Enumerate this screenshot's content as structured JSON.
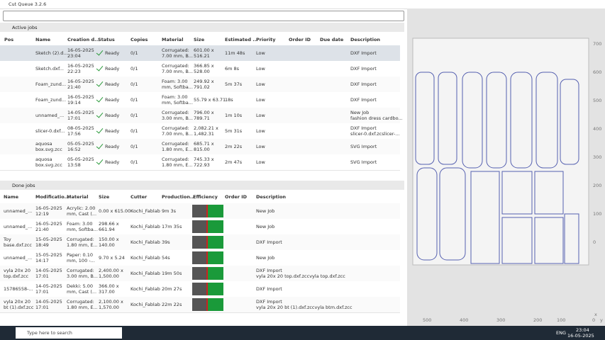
{
  "window": {
    "title": "Cut Queue 3.2.6"
  },
  "active": {
    "title": "Active jobs",
    "columns": [
      "Pos",
      "Name",
      "Creation d...",
      "Status",
      "Copies",
      "Material",
      "Size",
      "Estimated ...",
      "Priority",
      "Order ID",
      "Due date",
      "Description"
    ],
    "rows": [
      [
        "",
        "Sketch (2).d...",
        "16-05-2025\n23:04",
        "Ready",
        "0/1",
        "Corrugated:\n7.00 mm, B...",
        "601.00 x\n516.21",
        "11m 48s",
        "Low",
        "",
        "",
        "DXF Import"
      ],
      [
        "",
        "Sketch.dxf...",
        "16-05-2025\n22:23",
        "Ready",
        "0/1",
        "Corrugated:\n7.00 mm, B...",
        "366.85 x\n528.00",
        "6m 8s",
        "Low",
        "",
        "",
        "DXF Import"
      ],
      [
        "",
        "Foam_zund...",
        "16-05-2025\n21:40",
        "Ready",
        "0/1",
        "Foam: 3.00\nmm, Softba...",
        "249.92 x\n791.02",
        "5m 37s",
        "Low",
        "",
        "",
        "DXF Import"
      ],
      [
        "",
        "Foam_zund...",
        "16-05-2025\n19:14",
        "Ready",
        "0/1",
        "Foam: 3.00\nmm, Softba...",
        "55.79 x 63.71",
        "18s",
        "Low",
        "",
        "",
        "DXF Import"
      ],
      [
        "",
        "unnamed_...",
        "14-05-2025\n17:01",
        "Ready",
        "0/1",
        "Corrugated:\n3.00 mm, B...",
        "796.00 x\n789.71",
        "1m 10s",
        "Low",
        "",
        "",
        "New Job\nfashion dress cardbo..."
      ],
      [
        "",
        "slicer-0.dxf...",
        "08-05-2025\n17:56",
        "Ready",
        "0/1",
        "Corrugated:\n7.00 mm, B...",
        "2,082.21 x\n1,482.31",
        "5m 31s",
        "Low",
        "",
        "",
        "DXF Import\nslicer-0.dxf.zcslicer-..."
      ],
      [
        "",
        "aquosa\nbox.svg.zcc",
        "05-05-2025\n16:52",
        "Ready",
        "0/1",
        "Corrugated:\n1.80 mm, E...",
        "685.71 x\n815.00",
        "2m 22s",
        "Low",
        "",
        "",
        "SVG Import"
      ],
      [
        "",
        "aquosa\nbox.svg.zcc",
        "05-05-2025\n13:58",
        "Ready",
        "0/1",
        "Corrugated:\n1.80 mm, E...",
        "745.33 x\n722.93",
        "2m 47s",
        "Low",
        "",
        "",
        "SVG Import"
      ]
    ]
  },
  "done": {
    "title": "Done jobs",
    "columns": [
      "Name",
      "Modificatio...",
      "Material",
      "Size",
      "Cutter",
      "Production...",
      "Efficiency",
      "Order ID",
      "Description"
    ],
    "rows": [
      [
        "unnamed_...",
        "16-05-2025\n12:19",
        "Acrylic: 2.00\nmm, Cast (...",
        "0.00 x 615.00",
        "Kochi_Fablab",
        "9m 3s",
        "",
        "",
        "New Job"
      ],
      [
        "unnamed_...",
        "16-05-2025\n21:40",
        "Foam: 3.00\nmm, Softba...",
        "298.66 x\n661.94",
        "Kochi_Fablab",
        "17m 35s",
        "",
        "",
        "New Job"
      ],
      [
        "Toy\nbase.dxf.zcc",
        "15-05-2025\n18:49",
        "Corrugated:\n1.80 mm, E...",
        "150.00 x\n140.00",
        "Kochi_Fablab",
        "39s",
        "",
        "",
        "DXF Import"
      ],
      [
        "unnamed_...",
        "15-05-2025\n14:17",
        "Paper: 0.10\nmm, 100 -...",
        "9.70 x 5.24",
        "Kochi_Fablab",
        "54s",
        "",
        "",
        "New Job"
      ],
      [
        "vyla 20x 20\ntop.dxf.zcc",
        "14-05-2025\n17:01",
        "Corrugated:\n3.00 mm, B...",
        "2,400.00 x\n1,500.00",
        "Kochi_Fablab",
        "19m 50s",
        "",
        "",
        "DXF Import\nvyla 20x 20 top.dxf.zccvyla top.dxf.zcc"
      ],
      [
        "15786558-...",
        "14-05-2025\n17:01",
        "Dekki: 5.00\nmm, Cast (...",
        "366.00 x\n317.00",
        "Kochi_Fablab",
        "20m 27s",
        "",
        "",
        "DXF Import"
      ],
      [
        "vyla 20x 20\nbt (1).dxf.zcc",
        "14-05-2025\n17:01",
        "Corrugated:\n1.80 mm, E...",
        "2,100.00 x\n1,570.00",
        "Kochi_Fablab",
        "22m 22s",
        "",
        "",
        "DXF Import\nvyla 20x 20 bt (1).dxf.zccvyla btm.dxf.zcc"
      ]
    ]
  },
  "preview": {
    "xlabels": [
      "500",
      "400",
      "300",
      "200",
      "100",
      "0"
    ],
    "ylabels": [
      "700",
      "600",
      "500",
      "400",
      "300",
      "200",
      "100",
      "0"
    ],
    "xname": "x",
    "yname": "y"
  },
  "taskbar": {
    "search": "Type here to search",
    "lang": "ENG",
    "time": "23:04",
    "date": "16-05-2025"
  }
}
